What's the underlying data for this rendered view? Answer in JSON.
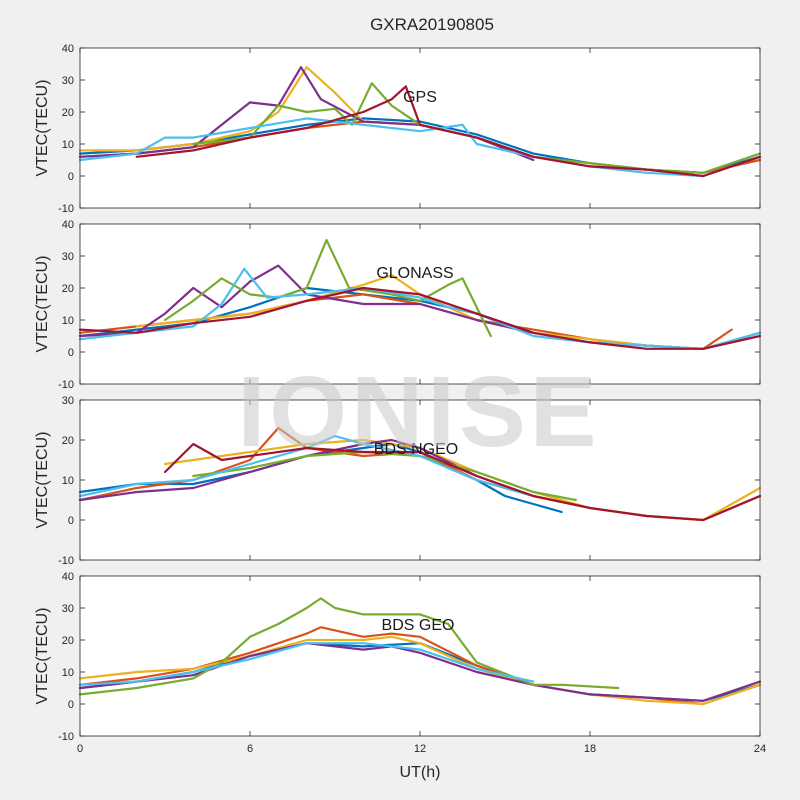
{
  "figure": {
    "title": "GXRA20190805",
    "watermark": "IONISE"
  },
  "colors": [
    "#0072bd",
    "#d95319",
    "#edb120",
    "#7e2f8e",
    "#77ac30",
    "#4dbeee",
    "#a2142f"
  ],
  "chart_data": [
    {
      "type": "line",
      "panel_label": "GPS",
      "ylabel": "VTEC(TECU)",
      "xlabel": "",
      "xlim": [
        0,
        24
      ],
      "ylim": [
        -10,
        40
      ],
      "xticks": [
        0,
        6,
        12,
        18,
        24
      ],
      "yticks": [
        -10,
        0,
        10,
        20,
        30,
        40
      ],
      "grid": false,
      "series": [
        {
          "x": [
            0,
            2,
            4,
            6,
            8,
            10,
            12,
            14,
            16,
            18,
            20,
            22,
            24
          ],
          "y": [
            7,
            8,
            10,
            13,
            16,
            18,
            17,
            13,
            7,
            4,
            2,
            1,
            6
          ]
        },
        {
          "x": [
            0,
            2,
            4,
            6,
            8,
            10,
            12,
            14,
            16,
            18,
            20,
            22,
            24
          ],
          "y": [
            6,
            7,
            9,
            12,
            15,
            17,
            16,
            12,
            6,
            4,
            2,
            1,
            5
          ]
        },
        {
          "x": [
            0,
            2,
            4,
            6,
            7,
            8,
            9,
            10,
            12,
            14,
            16,
            18,
            20
          ],
          "y": [
            8,
            8,
            10,
            14,
            20,
            34,
            26,
            17,
            16,
            12,
            6,
            3,
            2
          ]
        },
        {
          "x": [
            0,
            2,
            4,
            5,
            6,
            7,
            7.8,
            8.5,
            10,
            12,
            14,
            16
          ],
          "y": [
            6,
            7,
            9,
            16,
            23,
            22,
            34,
            24,
            17,
            16,
            12,
            5
          ]
        },
        {
          "x": [
            4,
            6,
            7,
            8,
            9,
            9.6,
            10.3,
            11,
            12,
            13,
            14,
            16,
            18,
            20,
            22,
            24
          ],
          "y": [
            10,
            12,
            22,
            20,
            21,
            16,
            29,
            22,
            16,
            14,
            12,
            6,
            4,
            2,
            1,
            7
          ]
        },
        {
          "x": [
            0,
            2,
            3,
            4,
            6,
            8,
            10,
            12,
            13.5,
            14,
            16,
            18,
            20,
            22,
            24
          ],
          "y": [
            5,
            7,
            12,
            12,
            15,
            18,
            16,
            14,
            16,
            10,
            6,
            3,
            1,
            0,
            6
          ]
        },
        {
          "x": [
            2,
            4,
            6,
            8,
            10,
            11,
            11.5,
            12,
            14,
            16,
            18,
            20,
            22,
            24
          ],
          "y": [
            6,
            8,
            12,
            15,
            20,
            24,
            28,
            16,
            12,
            6,
            3,
            2,
            0,
            6
          ]
        }
      ]
    },
    {
      "type": "line",
      "panel_label": "GLONASS",
      "ylabel": "VTEC(TECU)",
      "xlabel": "",
      "xlim": [
        0,
        24
      ],
      "ylim": [
        -10,
        40
      ],
      "xticks": [
        0,
        6,
        12,
        18,
        24
      ],
      "yticks": [
        -10,
        0,
        10,
        20,
        30,
        40
      ],
      "grid": false,
      "series": [
        {
          "x": [
            0,
            2,
            4,
            6,
            8,
            10,
            12,
            14,
            16,
            18,
            20,
            22,
            24
          ],
          "y": [
            5,
            7,
            9,
            14,
            20,
            18,
            16,
            12,
            6,
            3,
            2,
            1,
            6
          ]
        },
        {
          "x": [
            0,
            2,
            4,
            6,
            8,
            10,
            12,
            14,
            16,
            18,
            20,
            22,
            23
          ],
          "y": [
            6,
            8,
            10,
            12,
            16,
            18,
            15,
            10,
            7,
            4,
            2,
            1,
            7
          ]
        },
        {
          "x": [
            2,
            4,
            6,
            8,
            10,
            11,
            12,
            13,
            14,
            16,
            18,
            20,
            22
          ],
          "y": [
            8,
            10,
            12,
            16,
            21,
            24,
            18,
            14,
            10,
            6,
            4,
            2,
            1
          ]
        },
        {
          "x": [
            0,
            2,
            3,
            4,
            5,
            6,
            7,
            8,
            10,
            12,
            14,
            16
          ],
          "y": [
            5,
            6,
            12,
            20,
            14,
            22,
            27,
            18,
            15,
            15,
            10,
            6
          ]
        },
        {
          "x": [
            3,
            4,
            5,
            6,
            7,
            8,
            8.7,
            9.5,
            11,
            12,
            13,
            13.5,
            14.5
          ],
          "y": [
            10,
            16,
            23,
            18,
            17,
            20,
            35,
            20,
            18,
            16,
            21,
            23,
            5
          ]
        },
        {
          "x": [
            0,
            2,
            4,
            5,
            5.8,
            6.6,
            8,
            10,
            12,
            13,
            14,
            16,
            18,
            20,
            22,
            24
          ],
          "y": [
            4,
            6,
            8,
            15,
            26,
            17,
            18,
            20,
            17,
            14,
            12,
            5,
            3,
            2,
            1,
            6
          ]
        },
        {
          "x": [
            0,
            2,
            4,
            6,
            8,
            10,
            12,
            14,
            16,
            18,
            20,
            22,
            24
          ],
          "y": [
            7,
            6,
            9,
            11,
            16,
            20,
            18,
            12,
            6,
            3,
            1,
            1,
            5
          ]
        }
      ]
    },
    {
      "type": "line",
      "panel_label": "BDS NGEO",
      "ylabel": "VTEC(TECU)",
      "xlabel": "",
      "xlim": [
        0,
        24
      ],
      "ylim": [
        -10,
        30
      ],
      "xticks": [
        0,
        6,
        12,
        18,
        24
      ],
      "yticks": [
        -10,
        0,
        10,
        20,
        30
      ],
      "grid": false,
      "series": [
        {
          "x": [
            0,
            2,
            4,
            6,
            8,
            10,
            11,
            12,
            13,
            14,
            15,
            16,
            17
          ],
          "y": [
            7,
            9,
            9,
            12,
            16,
            18,
            19,
            17,
            13,
            10,
            6,
            4,
            2
          ]
        },
        {
          "x": [
            0,
            2,
            4,
            6,
            7,
            8,
            10,
            12,
            14,
            16,
            18,
            20,
            22,
            24
          ],
          "y": [
            5,
            8,
            10,
            15,
            23,
            18,
            16,
            17,
            10,
            6,
            3,
            1,
            0,
            6
          ]
        },
        {
          "x": [
            3,
            4,
            6,
            8,
            10,
            12,
            14,
            16,
            18,
            20,
            22,
            24
          ],
          "y": [
            14,
            15,
            17,
            19,
            20,
            18,
            12,
            7,
            3,
            1,
            0,
            8
          ]
        },
        {
          "x": [
            0,
            2,
            4,
            6,
            8,
            10,
            11,
            12,
            14,
            16
          ],
          "y": [
            5,
            7,
            8,
            12,
            16,
            19,
            20,
            18,
            11,
            6
          ]
        },
        {
          "x": [
            4,
            6,
            8,
            10,
            12,
            14,
            16,
            17.5
          ],
          "y": [
            11,
            13,
            16,
            17,
            16,
            12,
            7,
            5
          ]
        },
        {
          "x": [
            0,
            2,
            4,
            6,
            8,
            9,
            10,
            12,
            14,
            16
          ],
          "y": [
            6,
            9,
            10,
            14,
            18,
            21,
            19,
            16,
            10,
            6
          ]
        },
        {
          "x": [
            3,
            4,
            5,
            6,
            8,
            10,
            12,
            14,
            16,
            18,
            20,
            22,
            24
          ],
          "y": [
            12,
            19,
            15,
            16,
            18,
            17,
            17,
            11,
            6,
            3,
            1,
            0,
            6
          ]
        }
      ]
    },
    {
      "type": "line",
      "panel_label": "BDS GEO",
      "ylabel": "VTEC(TECU)",
      "xlabel": "UT(h)",
      "xlim": [
        0,
        24
      ],
      "ylim": [
        -10,
        40
      ],
      "xticks": [
        0,
        6,
        12,
        18,
        24
      ],
      "yticks": [
        -10,
        0,
        10,
        20,
        30,
        40
      ],
      "grid": false,
      "series": [
        {
          "x": [
            0,
            2,
            4,
            6,
            8,
            10,
            12,
            14,
            16,
            18,
            20,
            22,
            24
          ],
          "y": [
            5,
            7,
            10,
            15,
            19,
            18,
            19,
            12,
            6,
            3,
            2,
            1,
            6
          ]
        },
        {
          "x": [
            0,
            2,
            4,
            6,
            8,
            8.5,
            10,
            11,
            12,
            14,
            16,
            18,
            20,
            22,
            24
          ],
          "y": [
            6,
            8,
            11,
            16,
            22,
            24,
            21,
            22,
            21,
            12,
            6,
            3,
            2,
            0,
            6
          ]
        },
        {
          "x": [
            0,
            2,
            4,
            6,
            8,
            10,
            11,
            12,
            14,
            16,
            18,
            20,
            22,
            24
          ],
          "y": [
            8,
            10,
            11,
            15,
            20,
            20,
            21,
            19,
            11,
            6,
            3,
            1,
            0,
            6
          ]
        },
        {
          "x": [
            0,
            2,
            4,
            6,
            8,
            10,
            11,
            12,
            14,
            16,
            18,
            20,
            22,
            24
          ],
          "y": [
            5,
            7,
            9,
            15,
            19,
            17,
            18,
            16,
            10,
            6,
            3,
            2,
            1,
            7
          ]
        },
        {
          "x": [
            0,
            2,
            4,
            5,
            6,
            7,
            8,
            8.5,
            9,
            10,
            12,
            13,
            14,
            16,
            17,
            19
          ],
          "y": [
            3,
            5,
            8,
            13,
            21,
            25,
            30,
            33,
            30,
            28,
            28,
            25,
            13,
            6,
            6,
            5
          ]
        },
        {
          "x": [
            0,
            2,
            4,
            6,
            8,
            10,
            12,
            14,
            16
          ],
          "y": [
            6,
            7,
            10,
            14,
            19,
            19,
            17,
            11,
            7
          ]
        }
      ]
    }
  ]
}
